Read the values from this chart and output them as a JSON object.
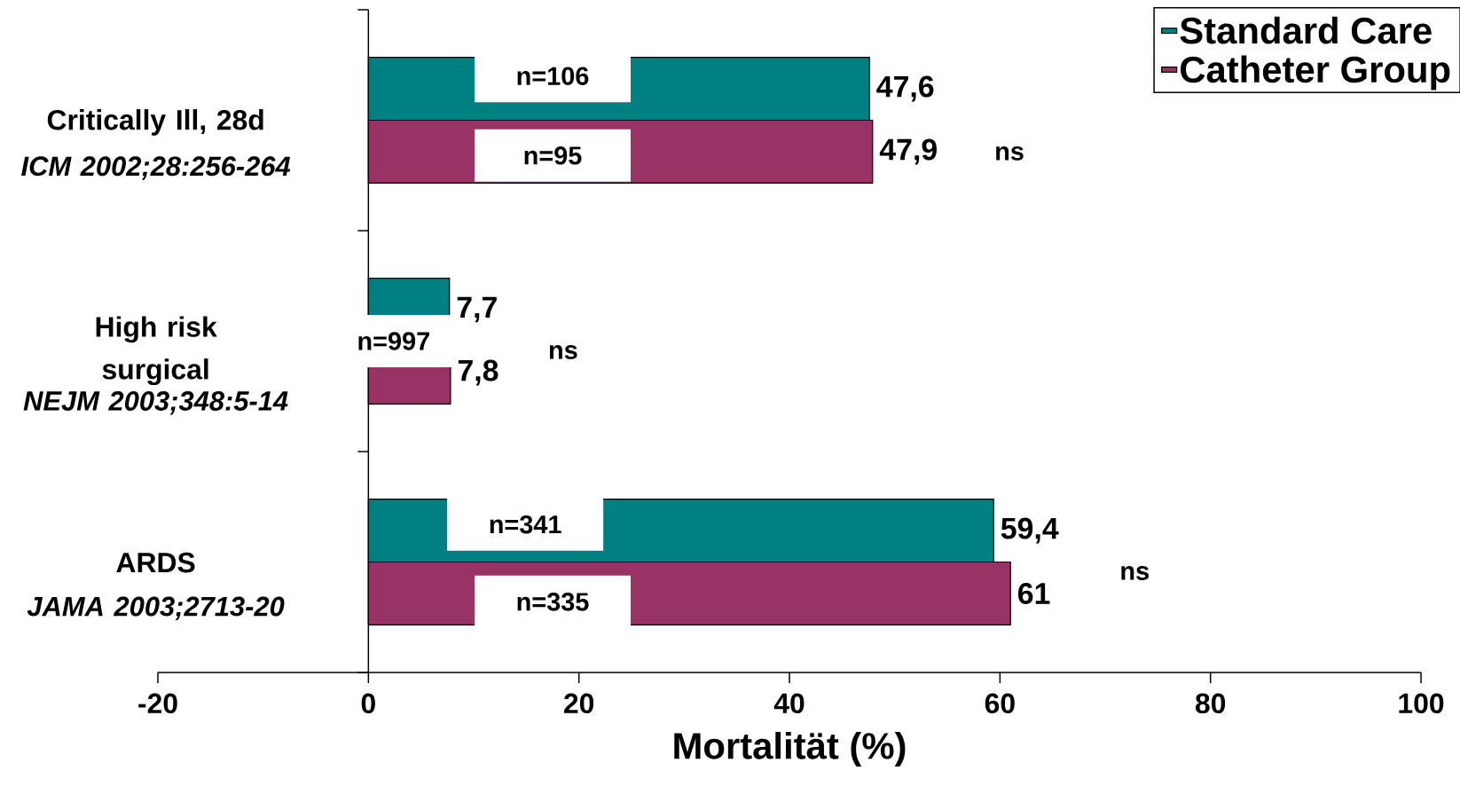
{
  "chart_data": {
    "type": "bar",
    "orientation": "horizontal",
    "xlabel": "Mortalität (%)",
    "categories": [
      "Critically Ill, 28d",
      "High risk surgical",
      "ARDS"
    ],
    "series": [
      {
        "name": "Standard Care",
        "color": "#008080",
        "values": [
          47.6,
          7.7,
          59.4
        ],
        "value_labels": [
          "47,6",
          "7,7",
          "59,4"
        ]
      },
      {
        "name": "Catheter Group",
        "color": "#993366",
        "values": [
          47.9,
          7.8,
          61
        ],
        "value_labels": [
          "47,9",
          "7,8",
          "61"
        ]
      }
    ],
    "xlim": [
      -20,
      100
    ],
    "xticks": [
      -20,
      0,
      20,
      40,
      60,
      80,
      100
    ],
    "legend": "top right",
    "annotations": [
      "ICM 2002;28:256-264",
      "NEJM 2003;348:5-14",
      "JAMA 2003;2713-20",
      "n=106",
      "n=95",
      "n=997",
      "n=341",
      "n=335",
      "ns",
      "ns",
      "ns"
    ]
  }
}
